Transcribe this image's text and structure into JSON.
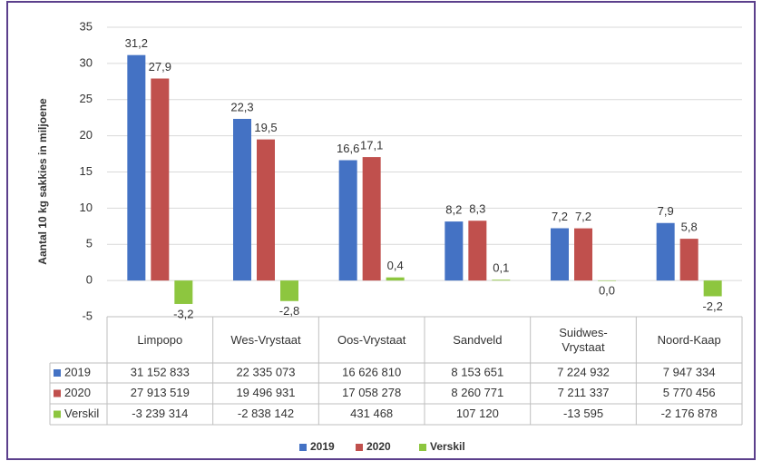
{
  "chart_data": {
    "type": "bar",
    "y_label": "Aantal 10 kg sakkies in miljoene",
    "categories": [
      "Limpopo",
      "Wes-Vrystaat",
      "Oos-Vrystaat",
      "Sandveld",
      "Suidwes-Vrystaat",
      "Noord-Kaap"
    ],
    "series": [
      {
        "name": "2019",
        "color": "#4472c4",
        "values": [
          31.152833,
          22.335073,
          16.62681,
          8.153651,
          7.224932,
          7.947334
        ],
        "value_labels": [
          "31,2",
          "22,3",
          "16,6",
          "8,2",
          "7,2",
          "7,9"
        ],
        "table_labels": [
          "31 152 833",
          "22 335 073",
          "16 626 810",
          "8 153 651",
          "7 224 932",
          "7 947 334"
        ]
      },
      {
        "name": "2020",
        "color": "#c0504d",
        "values": [
          27.913519,
          19.496931,
          17.058278,
          8.260771,
          7.211337,
          5.770456
        ],
        "value_labels": [
          "27,9",
          "19,5",
          "17,1",
          "8,3",
          "7,2",
          "5,8"
        ],
        "table_labels": [
          "27 913 519",
          "19 496 931",
          "17 058 278",
          "8 260 771",
          "7 211 337",
          "5 770 456"
        ]
      },
      {
        "name": "Verskil",
        "color": "#8dc63f",
        "values": [
          -3.239314,
          -2.838142,
          0.431468,
          0.10712,
          -0.013595,
          -2.176878
        ],
        "value_labels": [
          "-3,2",
          "-2,8",
          "0,4",
          "0,1",
          "0,0",
          "-2,2"
        ],
        "table_labels": [
          "-3 239 314",
          "-2 838 142",
          "431 468",
          "107 120",
          "-13 595",
          "-2 176 878"
        ]
      }
    ],
    "ylim": [
      -5,
      35
    ],
    "yticks": [
      -5,
      0,
      5,
      10,
      15,
      20,
      25,
      30,
      35
    ],
    "grid": true,
    "legend": "bottom"
  }
}
